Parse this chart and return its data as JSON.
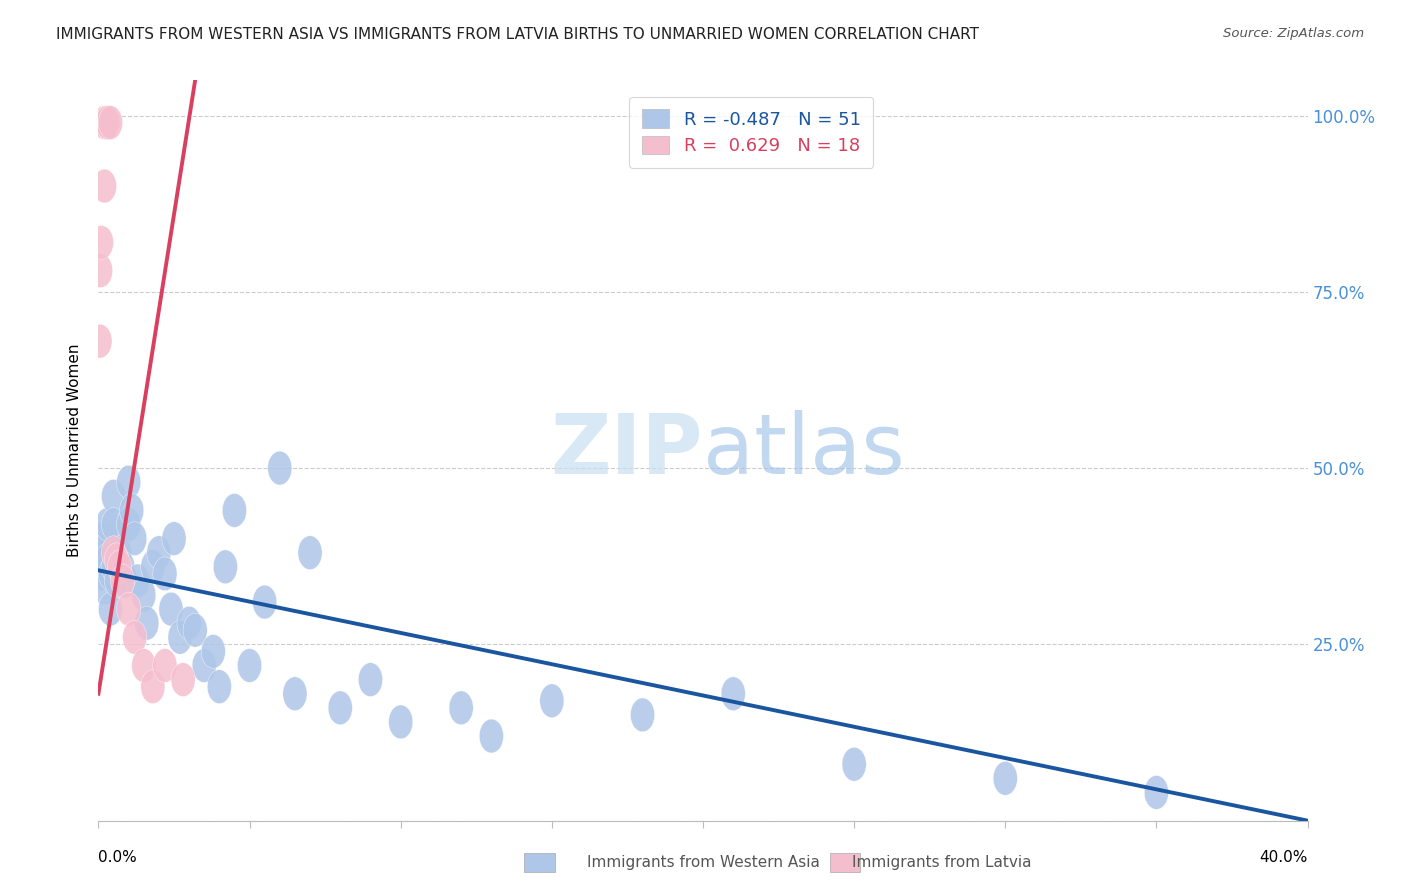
{
  "title": "IMMIGRANTS FROM WESTERN ASIA VS IMMIGRANTS FROM LATVIA BIRTHS TO UNMARRIED WOMEN CORRELATION CHART",
  "source": "Source: ZipAtlas.com",
  "ylabel": "Births to Unmarried Women",
  "y_ticks": [
    0.0,
    0.25,
    0.5,
    0.75,
    1.0
  ],
  "y_tick_labels": [
    "",
    "25.0%",
    "50.0%",
    "75.0%",
    "100.0%"
  ],
  "legend_blue_r": "-0.487",
  "legend_blue_n": "51",
  "legend_pink_r": "0.629",
  "legend_pink_n": "18",
  "blue_color": "#aec6e8",
  "pink_color": "#f5bece",
  "blue_line_color": "#1a56a0",
  "pink_line_color": "#d94060",
  "watermark_color": "#daeaf7",
  "blue_scatter_x": [
    0.001,
    0.001,
    0.002,
    0.002,
    0.003,
    0.003,
    0.004,
    0.004,
    0.005,
    0.005,
    0.005,
    0.006,
    0.007,
    0.008,
    0.009,
    0.01,
    0.01,
    0.011,
    0.012,
    0.013,
    0.015,
    0.016,
    0.018,
    0.02,
    0.022,
    0.024,
    0.025,
    0.027,
    0.03,
    0.032,
    0.035,
    0.038,
    0.04,
    0.042,
    0.045,
    0.05,
    0.055,
    0.06,
    0.065,
    0.07,
    0.08,
    0.09,
    0.1,
    0.12,
    0.13,
    0.15,
    0.18,
    0.21,
    0.25,
    0.3,
    0.35
  ],
  "blue_scatter_y": [
    0.38,
    0.35,
    0.4,
    0.33,
    0.42,
    0.37,
    0.35,
    0.3,
    0.46,
    0.42,
    0.36,
    0.34,
    0.38,
    0.36,
    0.34,
    0.48,
    0.42,
    0.44,
    0.4,
    0.34,
    0.32,
    0.28,
    0.36,
    0.38,
    0.35,
    0.3,
    0.4,
    0.26,
    0.28,
    0.27,
    0.22,
    0.24,
    0.19,
    0.36,
    0.44,
    0.22,
    0.31,
    0.5,
    0.18,
    0.38,
    0.16,
    0.2,
    0.14,
    0.16,
    0.12,
    0.17,
    0.15,
    0.18,
    0.08,
    0.06,
    0.04
  ],
  "pink_scatter_x": [
    0.0005,
    0.0007,
    0.001,
    0.002,
    0.002,
    0.003,
    0.003,
    0.004,
    0.005,
    0.006,
    0.007,
    0.008,
    0.01,
    0.012,
    0.015,
    0.018,
    0.022,
    0.028
  ],
  "pink_scatter_y": [
    0.68,
    0.78,
    0.82,
    0.9,
    0.99,
    0.99,
    0.99,
    0.99,
    0.38,
    0.37,
    0.36,
    0.34,
    0.3,
    0.26,
    0.22,
    0.19,
    0.22,
    0.2
  ],
  "blue_trend_x": [
    0.0,
    0.4
  ],
  "blue_trend_y": [
    0.355,
    0.0
  ],
  "pink_trend_x": [
    0.0,
    0.032
  ],
  "pink_trend_y": [
    0.18,
    1.05
  ],
  "xlim": [
    0.0,
    0.4
  ],
  "ylim": [
    0.0,
    1.05
  ]
}
